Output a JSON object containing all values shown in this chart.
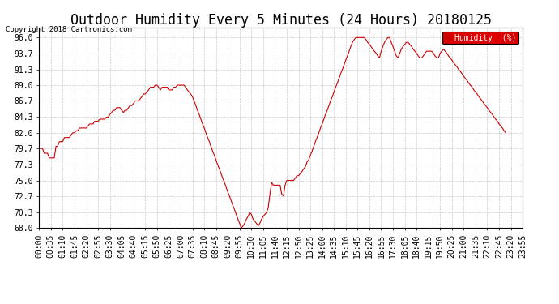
{
  "title": "Outdoor Humidity Every 5 Minutes (24 Hours) 20180125",
  "copyright": "Copyright 2018 Cartronics.com",
  "legend_label": "Humidity  (%)",
  "line_color": "#cc0000",
  "background_color": "#ffffff",
  "plot_background": "#ffffff",
  "grid_color": "#bbbbbb",
  "ylim": [
    68.0,
    97.5
  ],
  "yticks": [
    68.0,
    70.3,
    72.7,
    75.0,
    77.3,
    79.7,
    82.0,
    84.3,
    86.7,
    89.0,
    91.3,
    93.7,
    96.0
  ],
  "title_fontsize": 12,
  "tick_fontsize": 7,
  "xtick_interval_min": 35,
  "humidity_data": [
    79.7,
    79.7,
    79.7,
    79.0,
    79.0,
    79.0,
    78.3,
    78.3,
    78.3,
    78.3,
    80.0,
    80.0,
    80.7,
    80.7,
    80.7,
    81.3,
    81.3,
    81.3,
    81.3,
    81.7,
    82.0,
    82.0,
    82.3,
    82.3,
    82.7,
    82.7,
    82.7,
    82.7,
    82.7,
    83.0,
    83.3,
    83.3,
    83.3,
    83.7,
    83.7,
    83.7,
    84.0,
    84.0,
    84.0,
    84.0,
    84.3,
    84.3,
    84.7,
    85.0,
    85.3,
    85.3,
    85.7,
    85.7,
    85.7,
    85.3,
    85.0,
    85.3,
    85.3,
    85.7,
    86.0,
    86.0,
    86.3,
    86.7,
    86.7,
    86.7,
    87.0,
    87.3,
    87.7,
    87.7,
    88.0,
    88.3,
    88.7,
    88.7,
    88.7,
    89.0,
    89.0,
    88.7,
    88.3,
    88.7,
    88.7,
    88.7,
    88.7,
    88.3,
    88.3,
    88.3,
    88.7,
    88.7,
    89.0,
    89.0,
    89.0,
    89.0,
    89.0,
    88.7,
    88.3,
    88.0,
    87.7,
    87.3,
    86.7,
    86.0,
    85.3,
    84.7,
    84.0,
    83.3,
    82.7,
    82.0,
    81.3,
    80.7,
    80.0,
    79.3,
    78.7,
    78.0,
    77.3,
    76.7,
    76.0,
    75.3,
    74.7,
    74.0,
    73.3,
    72.7,
    72.0,
    71.3,
    70.7,
    70.0,
    69.3,
    68.7,
    68.0,
    68.3,
    68.7,
    69.3,
    69.7,
    70.3,
    70.0,
    69.3,
    69.0,
    68.7,
    68.3,
    68.7,
    69.3,
    69.7,
    70.0,
    70.3,
    71.0,
    73.0,
    74.7,
    74.3,
    74.3,
    74.3,
    74.3,
    74.3,
    73.0,
    72.7,
    74.3,
    75.0,
    75.0,
    75.0,
    75.0,
    75.0,
    75.3,
    75.7,
    75.7,
    76.0,
    76.3,
    76.7,
    77.0,
    77.7,
    78.0,
    78.7,
    79.3,
    80.0,
    80.7,
    81.3,
    82.0,
    82.7,
    83.3,
    84.0,
    84.7,
    85.3,
    86.0,
    86.7,
    87.3,
    88.0,
    88.7,
    89.3,
    90.0,
    90.7,
    91.3,
    92.0,
    92.7,
    93.3,
    94.0,
    94.7,
    95.3,
    95.7,
    96.0,
    96.0,
    96.0,
    96.0,
    96.0,
    96.0,
    95.7,
    95.3,
    95.0,
    94.7,
    94.3,
    94.0,
    93.7,
    93.3,
    93.0,
    94.0,
    94.7,
    95.3,
    95.7,
    96.0,
    96.0,
    95.3,
    94.7,
    94.0,
    93.3,
    93.0,
    93.7,
    94.3,
    94.7,
    95.0,
    95.3,
    95.3,
    95.0,
    94.7,
    94.3,
    94.0,
    93.7,
    93.3,
    93.0,
    93.0,
    93.3,
    93.7,
    94.0,
    94.0,
    94.0,
    94.0,
    93.7,
    93.3,
    93.0,
    93.0,
    93.7,
    94.0,
    94.3,
    94.0,
    93.7,
    93.3,
    93.0,
    92.7,
    92.3,
    92.0,
    91.7,
    91.3,
    91.0,
    90.7,
    90.3,
    90.0,
    89.7,
    89.3,
    89.0,
    88.7,
    88.3,
    88.0,
    87.7,
    87.3,
    87.0,
    86.7,
    86.3,
    86.0,
    85.7,
    85.3,
    85.0,
    84.7,
    84.3,
    84.0,
    83.7,
    83.3,
    83.0,
    82.7,
    82.3,
    82.0
  ]
}
